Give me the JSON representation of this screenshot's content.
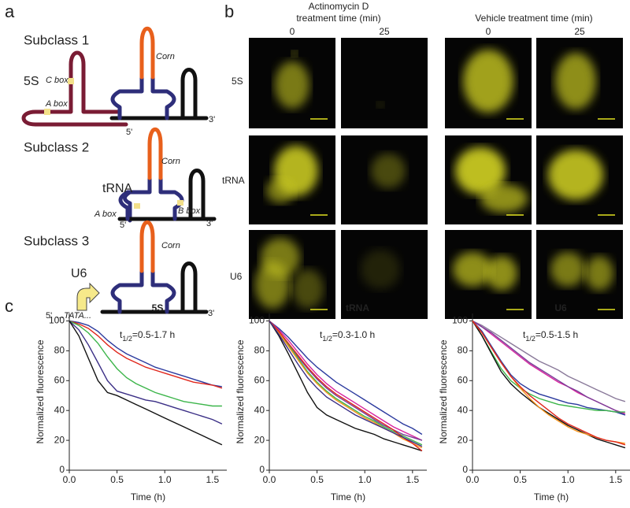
{
  "panel_a": {
    "label": "a",
    "subclass_1": {
      "title": "Subclass 1",
      "rna": "5S",
      "box_1": "C box",
      "box_2": "A box",
      "aptamer": "Corn",
      "five": "5'",
      "three": "3'"
    },
    "subclass_2": {
      "title": "Subclass 2",
      "rna": "tRNA",
      "box_1": "A box",
      "box_2": "B box",
      "aptamer": "Corn",
      "five": "5'",
      "three": "3'"
    },
    "subclass_3": {
      "title": "Subclass 3",
      "rna": "U6",
      "aptamer": "Corn",
      "five": "5'",
      "promoter": "...TATA...",
      "three": "3'"
    }
  },
  "panel_b": {
    "label": "b",
    "group_1": {
      "title_line_1": "Actinomycin D",
      "title_line_2": "treatment time (min)",
      "time_1": 0,
      "time_2": 25
    },
    "group_2": {
      "title": "Vehicle treatment time (min)",
      "time_1": 0,
      "time_2": 25
    },
    "rows": [
      "5S",
      "tRNA",
      "U6"
    ]
  },
  "panel_c": {
    "label": "c"
  },
  "chart_data": [
    {
      "type": "line",
      "title": "5S",
      "annotation": {
        "text": "t",
        "subscript": "1/2",
        "rest": "=0.5-1.7 h"
      },
      "x_label": "Time (h)",
      "y_label": "Normalized fluorescence",
      "x": [
        0,
        0.1,
        0.2,
        0.3,
        0.4,
        0.5,
        0.6,
        0.7,
        0.8,
        0.9,
        1.0,
        1.1,
        1.2,
        1.3,
        1.4,
        1.5,
        1.6
      ],
      "xlim": [
        0,
        1.65
      ],
      "ylim": [
        0,
        105
      ],
      "xticks": [
        {
          "value": 0,
          "label": "0.0"
        },
        {
          "value": 0.5,
          "label": "0.5"
        },
        {
          "value": 1,
          "label": "1.0"
        },
        {
          "value": 1.5,
          "label": "1.5"
        }
      ],
      "yticks": [
        0,
        20,
        40,
        60,
        80,
        100
      ],
      "series": [
        {
          "color": "#2b3a9e",
          "values": [
            100,
            99,
            97,
            93,
            87,
            82,
            78,
            75,
            72,
            69,
            67,
            65,
            63,
            61,
            59,
            57,
            56
          ]
        },
        {
          "color": "#e0261c",
          "values": [
            100,
            98,
            95,
            90,
            84,
            79,
            75,
            72,
            69,
            67,
            65,
            63,
            61,
            59,
            58,
            57,
            55
          ]
        },
        {
          "color": "#3cb54a",
          "values": [
            100,
            97,
            92,
            85,
            76,
            68,
            62,
            58,
            55,
            52,
            50,
            48,
            46,
            45,
            44,
            43,
            43
          ]
        },
        {
          "color": "#3b2f86",
          "values": [
            100,
            94,
            84,
            72,
            60,
            53,
            51,
            49,
            47,
            46,
            44,
            42,
            40,
            38,
            36,
            34,
            31
          ]
        },
        {
          "color": "#111111",
          "values": [
            100,
            90,
            75,
            60,
            52,
            50,
            47,
            44,
            41,
            38,
            35,
            32,
            29,
            26,
            23,
            20,
            17
          ]
        }
      ]
    },
    {
      "type": "line",
      "title": "tRNA",
      "annotation": {
        "text": "t",
        "subscript": "1/2",
        "rest": "=0.3-1.0 h"
      },
      "x_label": "Time (h)",
      "y_label": "Normalized fluorescence",
      "x": [
        0,
        0.1,
        0.2,
        0.3,
        0.4,
        0.5,
        0.6,
        0.7,
        0.8,
        0.9,
        1.0,
        1.1,
        1.2,
        1.3,
        1.4,
        1.5,
        1.6
      ],
      "xlim": [
        0,
        1.65
      ],
      "ylim": [
        0,
        105
      ],
      "xticks": [
        {
          "value": 0,
          "label": "0.0"
        },
        {
          "value": 0.5,
          "label": "0.5"
        },
        {
          "value": 1,
          "label": "1.0"
        },
        {
          "value": 1.5,
          "label": "1.5"
        }
      ],
      "yticks": [
        0,
        20,
        40,
        60,
        80,
        100
      ],
      "series": [
        {
          "color": "#111111",
          "values": [
            100,
            90,
            78,
            65,
            52,
            42,
            37,
            34,
            31,
            28,
            26,
            24,
            21,
            19,
            17,
            15,
            13
          ]
        },
        {
          "color": "#2b3a9e",
          "values": [
            100,
            95,
            89,
            82,
            75,
            69,
            64,
            59,
            55,
            51,
            47,
            43,
            39,
            35,
            31,
            28,
            24
          ]
        },
        {
          "color": "#d6249f",
          "values": [
            100,
            94,
            87,
            79,
            71,
            64,
            58,
            53,
            49,
            45,
            41,
            37,
            33,
            29,
            26,
            23,
            20
          ]
        },
        {
          "color": "#7b3f98",
          "values": [
            100,
            93,
            85,
            76,
            68,
            61,
            55,
            50,
            46,
            42,
            38,
            34,
            30,
            27,
            24,
            22,
            20
          ]
        },
        {
          "color": "#3cb54a",
          "values": [
            100,
            93,
            84,
            75,
            66,
            59,
            53,
            48,
            44,
            40,
            36,
            33,
            29,
            26,
            23,
            20,
            17
          ]
        },
        {
          "color": "#f7941d",
          "values": [
            100,
            92,
            83,
            74,
            65,
            58,
            52,
            47,
            43,
            39,
            35,
            32,
            28,
            25,
            21,
            18,
            15
          ]
        },
        {
          "color": "#e0261c",
          "values": [
            100,
            93,
            85,
            77,
            69,
            62,
            56,
            51,
            47,
            43,
            39,
            35,
            31,
            27,
            22,
            18,
            13
          ]
        },
        {
          "color": "#3b2f86",
          "values": [
            100,
            91,
            81,
            71,
            62,
            55,
            49,
            45,
            41,
            37,
            34,
            31,
            28,
            25,
            22,
            19,
            16
          ]
        }
      ]
    },
    {
      "type": "line",
      "title": "U6",
      "annotation": {
        "text": "t",
        "subscript": "1/2",
        "rest": "=0.5-1.5 h"
      },
      "x_label": "Time (h)",
      "y_label": "Normalized fluorescence",
      "x": [
        0,
        0.1,
        0.2,
        0.3,
        0.4,
        0.5,
        0.6,
        0.7,
        0.8,
        0.9,
        1.0,
        1.1,
        1.2,
        1.3,
        1.4,
        1.5,
        1.6
      ],
      "xlim": [
        0,
        1.65
      ],
      "ylim": [
        0,
        105
      ],
      "xticks": [
        {
          "value": 0,
          "label": "0.0"
        },
        {
          "value": 0.5,
          "label": "0.5"
        },
        {
          "value": 1,
          "label": "1.0"
        },
        {
          "value": 1.5,
          "label": "1.5"
        }
      ],
      "yticks": [
        0,
        20,
        40,
        60,
        80,
        100
      ],
      "series": [
        {
          "color": "#8a7a9a",
          "values": [
            100,
            97,
            93,
            89,
            85,
            81,
            77,
            73,
            70,
            67,
            63,
            60,
            57,
            54,
            51,
            48,
            46
          ]
        },
        {
          "color": "#d6249f",
          "values": [
            100,
            96,
            91,
            86,
            81,
            76,
            71,
            67,
            63,
            59,
            56,
            52,
            49,
            46,
            43,
            40,
            38
          ]
        },
        {
          "color": "#7b3f98",
          "values": [
            100,
            96,
            92,
            87,
            82,
            77,
            72,
            68,
            64,
            60,
            56,
            53,
            49,
            46,
            43,
            40,
            37
          ]
        },
        {
          "color": "#2b3a9e",
          "values": [
            100,
            93,
            83,
            73,
            64,
            58,
            54,
            51,
            49,
            47,
            45,
            44,
            42,
            41,
            40,
            39,
            37
          ]
        },
        {
          "color": "#3cb54a",
          "values": [
            100,
            90,
            79,
            68,
            60,
            55,
            51,
            48,
            46,
            44,
            43,
            42,
            41,
            40,
            40,
            39,
            39
          ]
        },
        {
          "color": "#111111",
          "values": [
            100,
            90,
            78,
            66,
            58,
            52,
            47,
            42,
            38,
            34,
            30,
            27,
            24,
            21,
            19,
            17,
            15
          ]
        },
        {
          "color": "#f7941d",
          "values": [
            100,
            92,
            82,
            72,
            63,
            55,
            48,
            42,
            37,
            33,
            29,
            26,
            24,
            22,
            20,
            19,
            18
          ]
        },
        {
          "color": "#e0261c",
          "values": [
            100,
            92,
            82,
            72,
            63,
            56,
            50,
            45,
            40,
            35,
            31,
            28,
            25,
            22,
            20,
            19,
            17
          ]
        }
      ]
    }
  ]
}
